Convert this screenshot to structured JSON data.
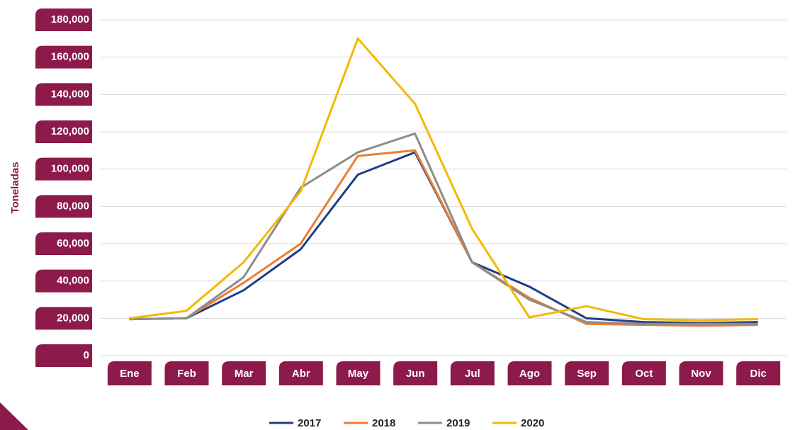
{
  "chart_data": {
    "type": "line",
    "y_label": "Toneladas",
    "categories": [
      "Ene",
      "Feb",
      "Mar",
      "Abr",
      "May",
      "Jun",
      "Jul",
      "Ago",
      "Sep",
      "Oct",
      "Nov",
      "Dic"
    ],
    "series": [
      {
        "name": "2017",
        "color": "#1f3c88",
        "values": [
          19500,
          20000,
          35000,
          57000,
          97000,
          109000,
          50000,
          37000,
          20000,
          18000,
          17500,
          18000
        ]
      },
      {
        "name": "2018",
        "color": "#ed7d31",
        "values": [
          19500,
          20000,
          39000,
          60000,
          107000,
          110000,
          50000,
          31000,
          17000,
          16500,
          16000,
          16500
        ]
      },
      {
        "name": "2019",
        "color": "#8c8c8c",
        "values": [
          19500,
          20000,
          42000,
          90000,
          109000,
          119000,
          50000,
          30000,
          18000,
          17000,
          17000,
          17000
        ]
      },
      {
        "name": "2020",
        "color": "#f5b800",
        "values": [
          20000,
          24000,
          50000,
          88000,
          170000,
          135000,
          68000,
          20500,
          26500,
          19500,
          19000,
          19500
        ]
      }
    ],
    "ylim": [
      0,
      180000
    ],
    "yticks": [
      0,
      {
        "value": 20000,
        "label": "20,000"
      },
      {
        "value": 40000,
        "label": "40,000"
      },
      {
        "value": 60000,
        "label": "60,000"
      },
      {
        "value": 80000,
        "label": "80,000"
      },
      {
        "value": 100000,
        "label": "100,000"
      },
      {
        "value": 120000,
        "label": "120,000"
      },
      {
        "value": 140000,
        "label": "140,000"
      },
      {
        "value": 160000,
        "label": "160,000"
      },
      {
        "value": 180000,
        "label": "180,000"
      }
    ],
    "grid": true,
    "label_color": "#8c1a4b",
    "legend": "bottom"
  }
}
